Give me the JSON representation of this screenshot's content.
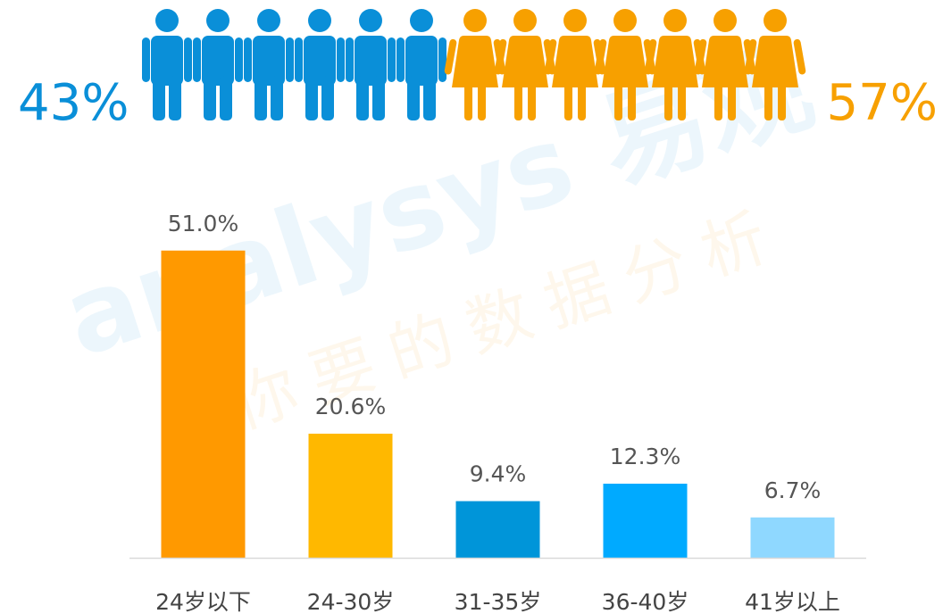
{
  "chart_data": [
    {
      "type": "pictogram",
      "values": [
        43,
        57
      ],
      "value_labels": [
        "43%",
        "57%"
      ],
      "colors": [
        "#0a8fd8",
        "#f7a000"
      ]
    },
    {
      "type": "bar",
      "categories": [
        "24岁以下",
        "24-30岁",
        "31-35岁",
        "36-40岁",
        "41岁以上"
      ],
      "values": [
        51.0,
        20.6,
        9.4,
        12.3,
        6.7
      ],
      "value_labels": [
        "51.0%",
        "20.6%",
        "9.4%",
        "12.3%",
        "6.7%"
      ],
      "colors": [
        "#ff9900",
        "#ffb800",
        "#0095d9",
        "#00aaff",
        "#8fd8ff"
      ],
      "ylim": [
        0,
        60
      ]
    }
  ],
  "watermark": {
    "brand": "analysys 易观",
    "slogan": "你要的数据分析"
  }
}
